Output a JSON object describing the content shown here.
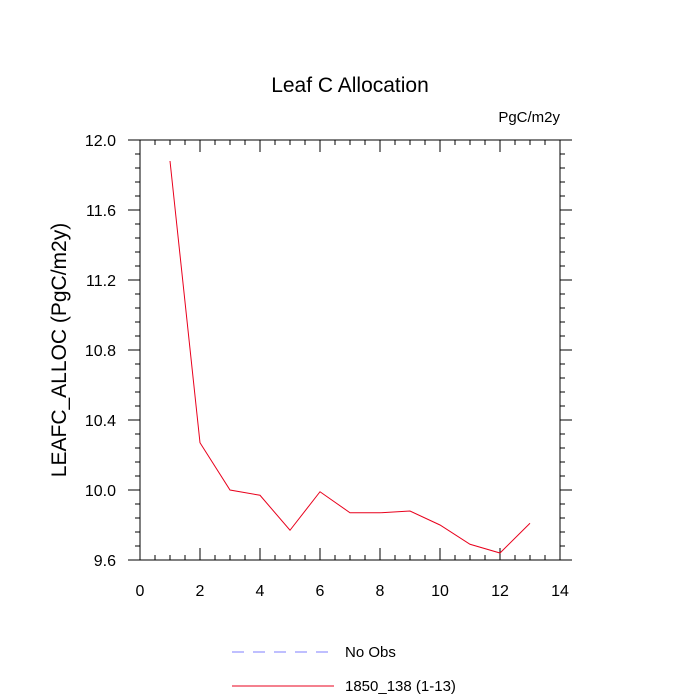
{
  "chart_data": {
    "type": "line",
    "title": "Leaf C Allocation",
    "units_label": "PgC/m2y",
    "xlabel": "",
    "ylabel": "LEAFC_ALLOC  (PgC/m2y)",
    "xlim": [
      0,
      14
    ],
    "ylim": [
      9.6,
      12.0
    ],
    "x_ticks": [
      0,
      2,
      4,
      6,
      8,
      10,
      12,
      14
    ],
    "y_ticks": [
      9.6,
      10.0,
      10.4,
      10.8,
      11.2,
      11.6,
      12.0
    ],
    "x_tick_labels": [
      "0",
      "2",
      "4",
      "6",
      "8",
      "10",
      "12",
      "14"
    ],
    "y_tick_labels": [
      "9.6",
      "10.0",
      "10.4",
      "10.8",
      "11.2",
      "11.6",
      "12.0"
    ],
    "grid": false,
    "legend_placement": "bottom",
    "series": [
      {
        "name": "1850_138 (1-13)",
        "color": "#e8001c",
        "style": "solid",
        "x": [
          1,
          2,
          3,
          4,
          5,
          6,
          7,
          8,
          9,
          10,
          11,
          12,
          13
        ],
        "y": [
          11.88,
          10.27,
          10.0,
          9.97,
          9.77,
          9.99,
          9.87,
          9.87,
          9.88,
          9.8,
          9.69,
          9.64,
          9.81
        ]
      }
    ],
    "legend": [
      {
        "label": "No Obs",
        "color": "#7f7fff",
        "style": "dashed"
      },
      {
        "label": "1850_138 (1-13)",
        "color": "#e8001c",
        "style": "solid"
      }
    ]
  }
}
